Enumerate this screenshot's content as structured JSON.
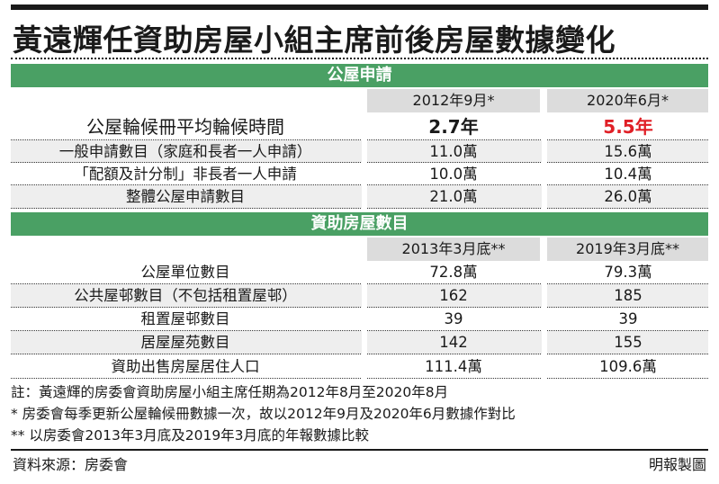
{
  "title": "黃遠輝任資助房屋小組主席前後房屋數據變化",
  "section1": {
    "header": "公屋申請",
    "col1": "2012年9月*",
    "col2": "2020年6月*",
    "rows": [
      {
        "label": "公屋輪候冊平均輪候時間",
        "v1": "2.7年",
        "v2": "5.5年"
      },
      {
        "label": "一般申請數目（家庭和長者一人申請）",
        "v1": "11.0萬",
        "v2": "15.6萬"
      },
      {
        "label": "「配額及計分制」非長者一人申請",
        "v1": "10.0萬",
        "v2": "10.4萬"
      },
      {
        "label": "整體公屋申請數目",
        "v1": "21.0萬",
        "v2": "26.0萬"
      }
    ]
  },
  "section2": {
    "header": "資助房屋數目",
    "col1": "2013年3月底**",
    "col2": "2019年3月底**",
    "rows": [
      {
        "label": "公屋單位數目",
        "v1": "72.8萬",
        "v2": "79.3萬"
      },
      {
        "label": "公共屋邨數目（不包括租置屋邨）",
        "v1": "162",
        "v2": "185"
      },
      {
        "label": "租置屋邨數目",
        "v1": "39",
        "v2": "39"
      },
      {
        "label": "居屋屋苑數目",
        "v1": "142",
        "v2": "155"
      },
      {
        "label": "資助出售房屋居住人口",
        "v1": "111.4萬",
        "v2": "109.6萬"
      }
    ]
  },
  "notes": [
    "註：黃遠輝的房委會資助房屋小組主席任期為2012年8月至2020年8月",
    "* 房委會每季更新公屋輪候冊數據一次，故以2012年9月及2020年6月數據作對比",
    "** 以房委會2013年3月底及2019年3月底的年報數據比較"
  ],
  "source": "資料來源：房委會",
  "credit": "明報製圖",
  "colors": {
    "header_green": "#4aa064",
    "highlight_red": "#e01f26",
    "col_header_gray": "#dcdcdc",
    "row_alt_gray": "#eeeeee"
  }
}
